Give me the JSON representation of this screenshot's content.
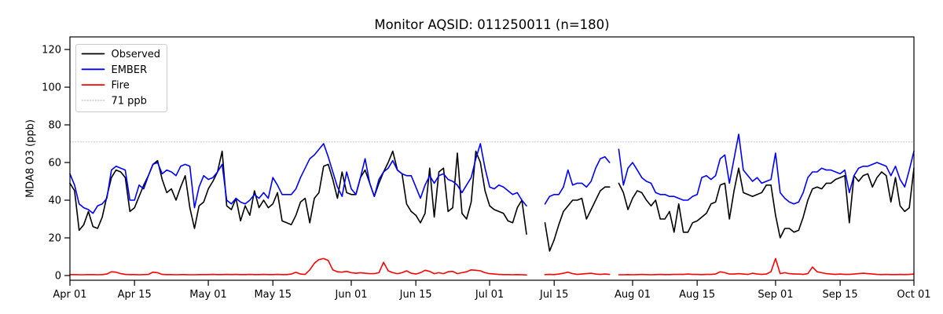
{
  "chart_data": {
    "type": "line",
    "title": "Monitor AQSID: 011250011 (n=180)",
    "ylabel": "MDA8 O3 (ppb)",
    "xlabel": "",
    "grid": false,
    "legend_position": "upper-left",
    "legend": [
      "Observed",
      "EMBER",
      "Fire",
      "71 ppb"
    ],
    "x_unit": "days since Apr 01",
    "x_max": 183,
    "ylim": [
      -2.5,
      126.7
    ],
    "yticks": [
      0,
      20,
      40,
      60,
      80,
      100,
      120
    ],
    "xticks": {
      "positions": [
        0,
        14,
        30,
        44,
        61,
        75,
        91,
        105,
        122,
        136,
        153,
        167,
        183
      ],
      "labels": [
        "Apr 01",
        "Apr 15",
        "May 01",
        "May 15",
        "Jun 01",
        "Jun 15",
        "Jul 01",
        "Jul 15",
        "Aug 01",
        "Aug 15",
        "Sep 01",
        "Sep 15",
        "Oct 01"
      ]
    },
    "threshold": {
      "value": 71,
      "label": "71 ppb",
      "color": "#d3d3d3",
      "style": "dotted"
    },
    "colors": {
      "observed": "#000000",
      "ember": "#0000ff",
      "fire": "#ff0000"
    },
    "series": [
      {
        "name": "Observed",
        "color": "#000000",
        "values": [
          49,
          45,
          24,
          27,
          34,
          26,
          25,
          31,
          42,
          52,
          56,
          55,
          52,
          34,
          36,
          42,
          48,
          53,
          59,
          61,
          51,
          44,
          46,
          40,
          47,
          53,
          36,
          25,
          37,
          39,
          46,
          50,
          55,
          66,
          37,
          35,
          41,
          29,
          37,
          32,
          45,
          36,
          40,
          36,
          38,
          44,
          29,
          28,
          27,
          32,
          39,
          41,
          28,
          41,
          44,
          58,
          59,
          51,
          41,
          55,
          44,
          43,
          43,
          52,
          56,
          49,
          42,
          49,
          55,
          60,
          66,
          56,
          54,
          38,
          34,
          32,
          28,
          33,
          57,
          31,
          55,
          57,
          34,
          36,
          65,
          33,
          30,
          39,
          66,
          60,
          45,
          37,
          35,
          34,
          33,
          29,
          28,
          36,
          40,
          22,
          null,
          null,
          null,
          28,
          13,
          19,
          27,
          34,
          37,
          40,
          40,
          41,
          30,
          35,
          40,
          45,
          47,
          47,
          null,
          49,
          44,
          35,
          41,
          45,
          44,
          40,
          37,
          40,
          30,
          30,
          34,
          23,
          38,
          23,
          23,
          28,
          29,
          31,
          33,
          38,
          39,
          48,
          49,
          30,
          45,
          57,
          44,
          43,
          42,
          43,
          44,
          48,
          48,
          32,
          20,
          25,
          25,
          23,
          24,
          31,
          40,
          46,
          47,
          46,
          49,
          49,
          51,
          52,
          53,
          28,
          53,
          50,
          53,
          54,
          47,
          52,
          55,
          53,
          39,
          52,
          37,
          34,
          36,
          57
        ]
      },
      {
        "name": "EMBER",
        "color": "#0000ff",
        "values": [
          54,
          48,
          38,
          36,
          35,
          33,
          37,
          38,
          41,
          56,
          58,
          57,
          56,
          40,
          40,
          48,
          46,
          53,
          59,
          60,
          54,
          56,
          55,
          53,
          58,
          59,
          58,
          36,
          47,
          53,
          51,
          52,
          55,
          59,
          40,
          38,
          41,
          39,
          38,
          40,
          43,
          41,
          44,
          41,
          52,
          48,
          43,
          43,
          43,
          46,
          52,
          57,
          62,
          64,
          67,
          70,
          63,
          55,
          47,
          42,
          55,
          46,
          43,
          52,
          62,
          49,
          42,
          51,
          55,
          57,
          61,
          56,
          54,
          53,
          53,
          47,
          41,
          48,
          53,
          49,
          53,
          54,
          51,
          50,
          48,
          44,
          48,
          52,
          62,
          70,
          57,
          47,
          46,
          48,
          47,
          45,
          43,
          44,
          40,
          37,
          null,
          null,
          null,
          38,
          42,
          43,
          43,
          47,
          56,
          48,
          49,
          49,
          47,
          50,
          57,
          62,
          63,
          60,
          null,
          67,
          48,
          57,
          60,
          56,
          52,
          50,
          49,
          44,
          43,
          43,
          42,
          42,
          41,
          40,
          40,
          42,
          43,
          52,
          53,
          51,
          53,
          62,
          64,
          49,
          62,
          75,
          56,
          53,
          50,
          52,
          49,
          50,
          51,
          65,
          44,
          41,
          39,
          38,
          39,
          44,
          52,
          55,
          55,
          57,
          56,
          56,
          55,
          54,
          56,
          44,
          53,
          57,
          58,
          58,
          59,
          60,
          59,
          58,
          53,
          58,
          51,
          47,
          56,
          66
        ]
      },
      {
        "name": "Fire",
        "color": "#ff0000",
        "values": [
          0.5,
          0.5,
          0.4,
          0.4,
          0.5,
          0.5,
          0.4,
          0.5,
          0.8,
          2.0,
          1.8,
          1.0,
          0.6,
          0.5,
          0.5,
          0.4,
          0.5,
          0.6,
          1.8,
          1.5,
          0.6,
          0.5,
          0.5,
          0.4,
          0.5,
          0.5,
          0.4,
          0.4,
          0.5,
          0.5,
          0.5,
          0.6,
          0.5,
          0.5,
          0.6,
          0.5,
          0.6,
          0.5,
          0.5,
          0.6,
          0.5,
          0.5,
          0.6,
          0.5,
          0.5,
          0.6,
          0.5,
          0.5,
          0.8,
          1.7,
          0.8,
          0.6,
          3.0,
          6.5,
          8.5,
          9.0,
          8.0,
          3.0,
          2.0,
          1.8,
          2.2,
          1.5,
          1.2,
          1.5,
          1.2,
          1.0,
          1.0,
          1.5,
          7.0,
          2.5,
          1.5,
          1.0,
          1.5,
          2.5,
          1.2,
          0.8,
          1.5,
          2.8,
          2.2,
          1.0,
          1.5,
          1.0,
          2.0,
          2.2,
          1.0,
          1.5,
          2.0,
          3.0,
          2.8,
          2.5,
          1.5,
          1.0,
          0.8,
          0.6,
          0.5,
          0.5,
          0.4,
          0.5,
          0.4,
          0.3,
          null,
          null,
          null,
          0.5,
          0.6,
          0.5,
          0.8,
          1.2,
          1.8,
          1.0,
          0.6,
          0.8,
          1.0,
          1.2,
          0.8,
          0.6,
          0.8,
          0.6,
          null,
          0.4,
          0.4,
          0.5,
          0.4,
          0.5,
          0.6,
          0.5,
          0.4,
          0.5,
          0.6,
          0.5,
          0.5,
          0.6,
          0.6,
          0.6,
          0.8,
          0.6,
          0.6,
          0.5,
          0.6,
          0.6,
          0.8,
          2.0,
          1.5,
          0.8,
          0.8,
          1.0,
          0.8,
          0.6,
          1.2,
          0.8,
          0.6,
          0.8,
          2.0,
          9.0,
          1.0,
          1.5,
          1.0,
          0.8,
          0.8,
          0.6,
          1.0,
          4.5,
          2.0,
          1.5,
          1.0,
          0.8,
          0.6,
          0.8,
          0.6,
          0.6,
          0.8,
          1.0,
          1.2,
          1.0,
          0.8,
          0.6,
          0.5,
          0.6,
          0.5,
          0.5,
          0.6,
          0.5,
          0.6,
          0.8
        ]
      }
    ]
  }
}
